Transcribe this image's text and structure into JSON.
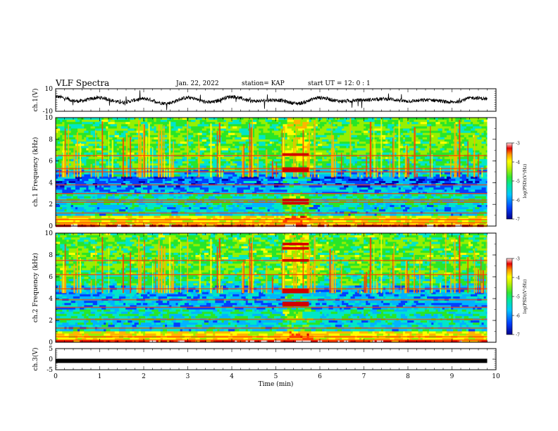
{
  "header": {
    "title": "VLF Spectra",
    "date": "Jan. 22, 2022",
    "station": "station= KAP",
    "start_ut": "start  UT =   12: 0  : 1"
  },
  "colors": {
    "line": "#000000",
    "colormap": [
      "#0000b4",
      "#0040ff",
      "#00b4ff",
      "#00e6c8",
      "#28e628",
      "#96f000",
      "#ffff00",
      "#ffb400",
      "#ff3c00",
      "#d20000",
      "#ffe6e6"
    ]
  },
  "chart_data": [
    {
      "type": "line",
      "ylabel": "ch.1(V)",
      "ylim": [
        -10,
        10
      ],
      "yticks": [
        "10",
        "-10"
      ],
      "x": [
        0,
        0.5,
        1,
        1.5,
        2,
        2.5,
        3,
        3.5,
        4,
        4.5,
        5,
        5.5,
        6,
        6.5,
        7,
        7.5,
        8,
        8.5,
        9,
        9.5,
        9.8
      ],
      "values": [
        3,
        -1,
        2,
        -2,
        1,
        -3,
        2,
        -2,
        3,
        -1,
        0,
        -3,
        2,
        -1,
        0,
        1,
        -1,
        0,
        -2,
        2,
        1
      ]
    },
    {
      "type": "heatmap",
      "ylabel": "ch.1  Frequency  (kHz)",
      "ylim": [
        0,
        10
      ],
      "yticks": [
        "0",
        "2",
        "4",
        "6",
        "8",
        "10"
      ],
      "colorbar_label": "log(PSD)(V²/Hz)",
      "colorbar_ticks": [
        "-3",
        "-4",
        "-5",
        "-6",
        "-7"
      ],
      "colorbar_range": [
        -7,
        -3
      ]
    },
    {
      "type": "heatmap",
      "ylabel": "ch.2  Frequency  (kHz)",
      "ylim": [
        0,
        10
      ],
      "yticks": [
        "0",
        "2",
        "4",
        "6",
        "8",
        "10"
      ],
      "colorbar_label": "log(PSD)(V²/Hz)",
      "colorbar_ticks": [
        "-3",
        "-4",
        "-5",
        "-6",
        "-7"
      ],
      "colorbar_range": [
        -7,
        -3
      ]
    },
    {
      "type": "line",
      "ylabel": "ch.3(V)",
      "ylim": [
        -5,
        5
      ],
      "yticks": [
        "5",
        "0",
        "-5"
      ],
      "x": [
        0,
        9.8
      ],
      "values": [
        -0.8,
        -0.8
      ]
    }
  ],
  "xaxis": {
    "label": "Time  (min)",
    "xlim": [
      0,
      10
    ],
    "ticks": [
      "0",
      "1",
      "2",
      "3",
      "4",
      "5",
      "6",
      "7",
      "8",
      "9",
      "10"
    ]
  }
}
